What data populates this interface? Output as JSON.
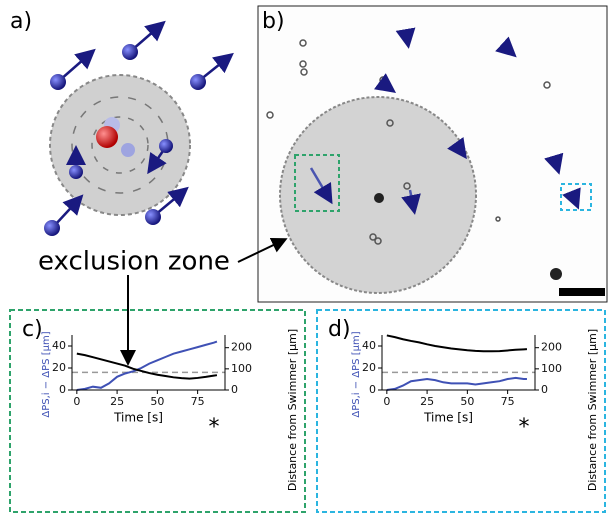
{
  "panel_labels": [
    "a)",
    "b)",
    "c)",
    "d)"
  ],
  "annotation": "exclusion zone",
  "chart_data": [
    {
      "type": "line",
      "xlabel": "Time [s]",
      "ylabel": "ΔPS,i − ΔPS [μm]",
      "y2label": "Distance from Swimmer [μm]",
      "annotation": "*",
      "frame_color": "#2ea36b",
      "x": [
        0,
        5,
        10,
        15,
        20,
        25,
        30,
        35,
        40,
        45,
        50,
        55,
        60,
        65,
        70,
        75,
        80,
        85,
        87
      ],
      "series": [
        {
          "color": "#3f51b5",
          "values": [
            0,
            1,
            3,
            2,
            6,
            12,
            15,
            17,
            20,
            24,
            27,
            30,
            33,
            35,
            37,
            39,
            41,
            43,
            44
          ]
        },
        {
          "color": "#000000",
          "axis": "y2",
          "values": [
            172,
            165,
            155,
            145,
            135,
            125,
            115,
            100,
            90,
            80,
            72,
            66,
            60,
            56,
            54,
            57,
            62,
            68,
            70
          ]
        }
      ],
      "reference_line": 16,
      "xlim": [
        -3,
        92
      ],
      "xticks": [
        0,
        25,
        50,
        75
      ],
      "ylim": [
        0,
        50
      ],
      "yticks": [
        0,
        20,
        40
      ],
      "y2lim": [
        0,
        260
      ],
      "y2ticks": [
        0,
        100,
        200
      ]
    },
    {
      "type": "line",
      "xlabel": "Time [s]",
      "ylabel": "ΔPS,i − ΔPS [μm]",
      "y2label": "Distance from Swimmer [μm]",
      "annotation": "*",
      "frame_color": "#2bb5e0",
      "x": [
        0,
        5,
        10,
        15,
        20,
        25,
        30,
        35,
        40,
        45,
        50,
        55,
        60,
        65,
        70,
        75,
        80,
        85,
        87
      ],
      "series": [
        {
          "color": "#3f51b5",
          "values": [
            0,
            1,
            4,
            8,
            9,
            10,
            9,
            7,
            6,
            6,
            6,
            5,
            6,
            7,
            8,
            10,
            11,
            10,
            10
          ]
        },
        {
          "color": "#000000",
          "axis": "y2",
          "values": [
            258,
            250,
            240,
            232,
            225,
            216,
            208,
            202,
            196,
            192,
            188,
            185,
            183,
            183,
            184,
            187,
            190,
            192,
            193
          ]
        }
      ],
      "reference_line": 16,
      "xlim": [
        -3,
        92
      ],
      "xticks": [
        0,
        25,
        50,
        75
      ],
      "ylim": [
        0,
        50
      ],
      "yticks": [
        0,
        20,
        40
      ],
      "y2lim": [
        0,
        260
      ],
      "y2ticks": [
        0,
        100,
        200
      ]
    }
  ]
}
